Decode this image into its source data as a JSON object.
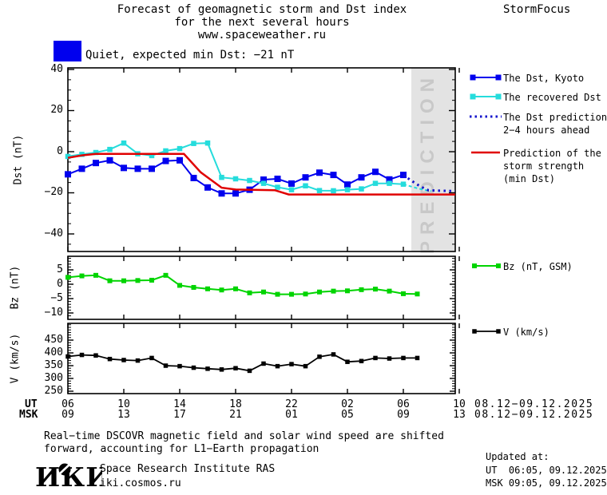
{
  "header": {
    "title_line1": "Forecast of geomagnetic storm and Dst index",
    "title_line2": "for the next several hours",
    "title_line3": "www.spaceweather.ru",
    "brand": "StormFocus"
  },
  "status": {
    "label": "Quiet, expected min Dst: −21 nT",
    "swatch_color": "#0000ee"
  },
  "prediction_band": {
    "label": "PREDICTION",
    "bg": "#e3e3e3",
    "text_color": "#c8c8c8"
  },
  "colors": {
    "kyoto_blue": "#0000ee",
    "recovered_cyan": "#25dcdc",
    "prediction_blue": "#1414cc",
    "storm_red": "#e00000",
    "bz_green": "#00d400",
    "v_black": "#000000",
    "frame": "#000000"
  },
  "xaxis": {
    "row1_label": "UT",
    "row2_label": "MSK",
    "row1_ticks": [
      "06",
      "10",
      "14",
      "18",
      "22",
      "02",
      "06",
      "10"
    ],
    "row2_ticks": [
      "09",
      "13",
      "17",
      "21",
      "01",
      "05",
      "09",
      "13"
    ],
    "row1_date": "08.12−09.12.2025",
    "row2_date": "08.12−09.12.2025"
  },
  "legend_main": [
    {
      "key": "kyoto",
      "lines": [
        "The Dst, Kyoto"
      ]
    },
    {
      "key": "recovered",
      "lines": [
        "The recovered Dst"
      ]
    },
    {
      "key": "prediction",
      "lines": [
        "The Dst prediction",
        "2−4 hours ahead"
      ]
    },
    {
      "key": "storm",
      "lines": [
        "Prediction of the",
        "storm strength",
        "(min Dst)"
      ]
    }
  ],
  "legend_bz": "Bz (nT, GSM)",
  "legend_v": "V (km/s)",
  "chart_data": [
    {
      "type": "line",
      "name": "dst",
      "title": "Dst index observed, recovered and predicted",
      "ylabel": "Dst (nT)",
      "ylim": [
        -48.5,
        40.8
      ],
      "yticks": [
        40,
        20,
        0,
        -20,
        -40
      ],
      "x_unit": "hours UT starting 06 UT 08.12.2025",
      "series": [
        {
          "name": "The Dst, Kyoto",
          "color_key": "kyoto_blue",
          "start_hour": 0,
          "step": 1,
          "values": [
            -11,
            -8.3,
            -5.5,
            -4.2,
            -7.9,
            -8.3,
            -8.3,
            -4.5,
            -4.2,
            -12.8,
            -17.4,
            -20.3,
            -20.3,
            -18.5,
            -13.6,
            -13.2,
            -15.5,
            -12.5,
            -10.2,
            -11.3,
            -16,
            -12.5,
            -9.8,
            -13.5,
            -11.3
          ]
        },
        {
          "name": "The recovered Dst",
          "color_key": "recovered_cyan",
          "start_hour": 0,
          "step": 1,
          "values": [
            -2.3,
            -1.3,
            -0.4,
            1.1,
            4.2,
            -1.0,
            -1.9,
            0.4,
            1.5,
            4.0,
            4.2,
            -12.5,
            -13.2,
            -14.0,
            -15.4,
            -17.3,
            -18.5,
            -16.6,
            -18.9,
            -19.0,
            -18.5,
            -18.1,
            -15.4,
            -15.4,
            -15.8
          ]
        },
        {
          "name": "recovered Dst tail",
          "color_key": "recovered_cyan",
          "style": "dashed",
          "points": [
            [
              24,
              -15.8
            ],
            [
              24.5,
              -16.8
            ],
            [
              25,
              -17.8
            ],
            [
              25.5,
              -18.6
            ],
            [
              26,
              -19.1
            ]
          ]
        },
        {
          "name": "The Dst prediction 2−4 hours ahead",
          "color_key": "prediction_blue",
          "style": "dotted",
          "points": [
            [
              24,
              -11.3
            ],
            [
              24.6,
              -14.2
            ],
            [
              25.2,
              -16.8
            ],
            [
              25.8,
              -18.8
            ],
            [
              27.7,
              -19.2
            ]
          ]
        },
        {
          "name": "Prediction of the storm strength (min Dst)",
          "color_key": "storm_red",
          "style": "solid",
          "points": [
            [
              0,
              -3
            ],
            [
              1,
              -1.8
            ],
            [
              2,
              -1.1
            ],
            [
              8.3,
              -1.1
            ],
            [
              9.5,
              -10
            ],
            [
              11,
              -17.5
            ],
            [
              12,
              -18.4
            ],
            [
              14.8,
              -18.7
            ],
            [
              15.8,
              -20.8
            ],
            [
              27.7,
              -20.8
            ]
          ]
        }
      ]
    },
    {
      "type": "line",
      "name": "bz",
      "title": "IMF Bz",
      "ylabel": "Bz (nT)",
      "ylim": [
        -12.2,
        9.7
      ],
      "yticks": [
        5,
        0,
        -5,
        -10
      ],
      "series": [
        {
          "name": "Bz (nT, GSM)",
          "color_key": "bz_green",
          "start_hour": 0,
          "step": 1,
          "values": [
            2.4,
            2.9,
            3.1,
            1.2,
            1.2,
            1.3,
            1.4,
            3.1,
            -0.4,
            -1.1,
            -1.6,
            -2.0,
            -1.6,
            -3.0,
            -2.7,
            -3.5,
            -3.5,
            -3.4,
            -2.7,
            -2.4,
            -2.3,
            -1.9,
            -1.7,
            -2.4,
            -3.3,
            -3.4
          ]
        }
      ]
    },
    {
      "type": "line",
      "name": "v",
      "title": "Solar wind speed",
      "ylabel": "V (km/s)",
      "ylim": [
        240,
        515
      ],
      "yticks": [
        450,
        400,
        350,
        300,
        250
      ],
      "series": [
        {
          "name": "V (km/s)",
          "color_key": "v_black",
          "start_hour": 0,
          "step": 1,
          "values": [
            386,
            392,
            390,
            376,
            372,
            370,
            380,
            350,
            348,
            342,
            338,
            335,
            340,
            330,
            358,
            348,
            356,
            348,
            385,
            394,
            365,
            368,
            380,
            378,
            380,
            380
          ]
        }
      ]
    }
  ],
  "footer": {
    "note_line1": "Real−time DSCOVR magnetic field and solar wind speed are shifted",
    "note_line2": "forward, accounting for L1−Earth propagation",
    "logo": "ИКИ",
    "institute": "Space Research Institute RAS",
    "site": "iki.cosmos.ru",
    "updated_label": "Updated at:",
    "updated_ut": "UT  06:05, 09.12.2025",
    "updated_msk": "MSK 09:05, 09.12.2025"
  }
}
